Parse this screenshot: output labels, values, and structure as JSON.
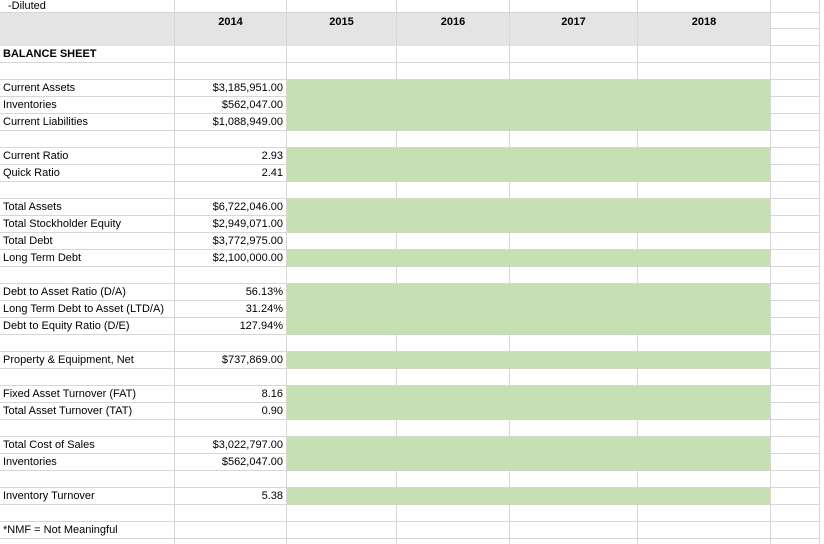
{
  "colors": {
    "header_fill": "#E4E4E4",
    "header_line": "#D8D8D8",
    "highlight_fill": "#C6E0B4",
    "gridline": "#D6D6D6",
    "text": "#000000"
  },
  "top_row": {
    "label": "-Diluted"
  },
  "header": {
    "years": [
      "2014",
      "2015",
      "2016",
      "2017",
      "2018"
    ]
  },
  "sheet": {
    "rows": [
      {
        "label": "BALANCE SHEET",
        "value": "",
        "highlight": false,
        "bold": true
      },
      {
        "label": "",
        "value": "",
        "highlight": false
      },
      {
        "label": "Current Assets",
        "value": "$3,185,951.00",
        "highlight": true
      },
      {
        "label": "Inventories",
        "value": "$562,047.00",
        "highlight": true
      },
      {
        "label": "Current Liabilities",
        "value": "$1,088,949.00",
        "highlight": true
      },
      {
        "label": "",
        "value": "",
        "highlight": false
      },
      {
        "label": "Current Ratio",
        "value": "2.93",
        "highlight": true
      },
      {
        "label": "Quick Ratio",
        "value": "2.41",
        "highlight": true
      },
      {
        "label": "",
        "value": "",
        "highlight": false
      },
      {
        "label": "Total Assets",
        "value": "$6,722,046.00",
        "highlight": true
      },
      {
        "label": "Total Stockholder Equity",
        "value": "$2,949,071.00",
        "highlight": true
      },
      {
        "label": "Total Debt",
        "value": "$3,772,975.00",
        "highlight": false
      },
      {
        "label": "Long Term Debt",
        "value": "$2,100,000.00",
        "highlight": true
      },
      {
        "label": "",
        "value": "",
        "highlight": false
      },
      {
        "label": "Debt to Asset Ratio (D/A)",
        "value": "56.13%",
        "highlight": true
      },
      {
        "label": "Long Term Debt to Asset (LTD/A)",
        "value": "31.24%",
        "highlight": true
      },
      {
        "label": "Debt to Equity Ratio (D/E)",
        "value": "127.94%",
        "highlight": true
      },
      {
        "label": "",
        "value": "",
        "highlight": false
      },
      {
        "label": "Property & Equipment, Net",
        "value": "$737,869.00",
        "highlight": true
      },
      {
        "label": "",
        "value": "",
        "highlight": false
      },
      {
        "label": "Fixed Asset Turnover (FAT)",
        "value": "8.16",
        "highlight": true
      },
      {
        "label": "Total Asset Turnover (TAT)",
        "value": "0.90",
        "highlight": true
      },
      {
        "label": "",
        "value": "",
        "highlight": false
      },
      {
        "label": "Total Cost of Sales",
        "value": "$3,022,797.00",
        "highlight": true
      },
      {
        "label": "Inventories",
        "value": "$562,047.00",
        "highlight": true
      },
      {
        "label": "",
        "value": "",
        "highlight": false
      },
      {
        "label": "Inventory Turnover",
        "value": "5.38",
        "highlight": true
      },
      {
        "label": "",
        "value": "",
        "highlight": false
      },
      {
        "label": "*NMF = Not Meaningful",
        "value": "",
        "highlight": false
      },
      {
        "label": "",
        "value": "",
        "highlight": false
      }
    ]
  }
}
